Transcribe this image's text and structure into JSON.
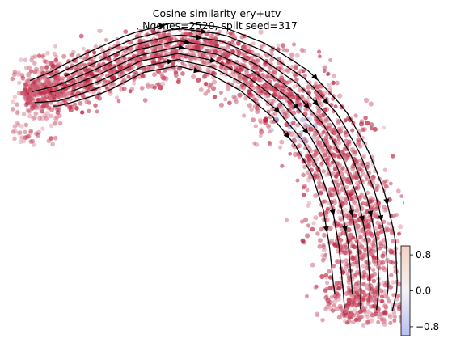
{
  "chart_data": {
    "type": "scatter",
    "subtype": "embedding-with-velocity-streamlines",
    "title_line1": "Cosine similarity ery+utv",
    "title_line2": ", Ngenes=2520, split seed=317",
    "axes_visible": false,
    "grid": false,
    "color_value_range": [
      -1,
      1
    ],
    "colormap": [
      "#3b4cc0",
      "#f7f7f7",
      "#b40426"
    ],
    "dominant_value": 0.95,
    "point_color": "#c0103a",
    "stream_color": "#000000",
    "colorbar": {
      "placement": "right-bottom",
      "ticks": [
        0.8,
        0.0,
        -0.8
      ],
      "tick_labels": [
        "0.8",
        "0.0",
        "−0.8"
      ]
    }
  }
}
